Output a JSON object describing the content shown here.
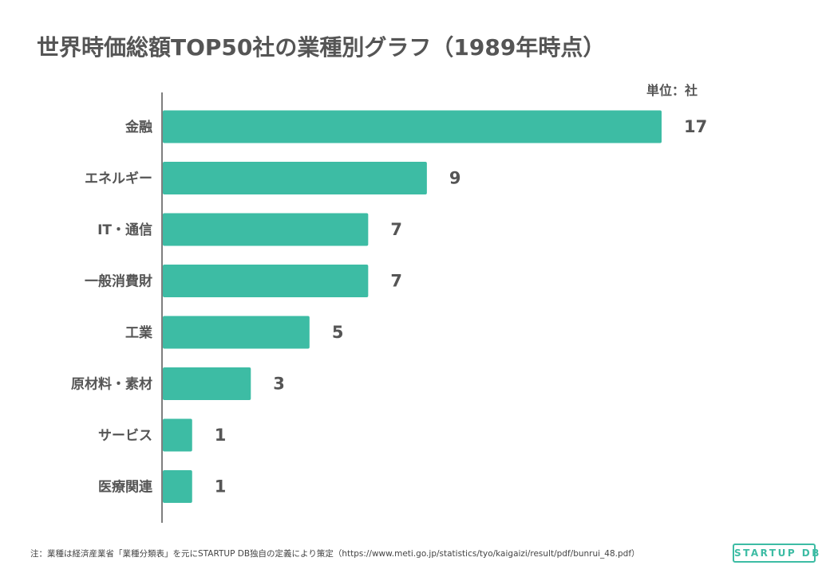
{
  "title": "世界時価総額TOP50社の業種別グラフ（1989年時点）",
  "unit_label": "単位：社",
  "colors": {
    "bar": "#3dbca4",
    "axis": "#555555",
    "text": "#555555"
  },
  "chart_data": {
    "type": "bar",
    "orientation": "horizontal",
    "title": "世界時価総額TOP50社の業種別グラフ（1989年時点）",
    "categories": [
      "金融",
      "エネルギー",
      "IT・通信",
      "一般消費財",
      "工業",
      "原材料・素材",
      "サービス",
      "医療関連"
    ],
    "values": [
      17,
      9,
      7,
      7,
      5,
      3,
      1,
      1
    ],
    "xlabel": "",
    "ylabel": "",
    "xlim": [
      0,
      17
    ],
    "grid": false,
    "legend": "none"
  },
  "footnote": "注：業種は経済産業省「業種分類表」を元にSTARTUP DB独自の定義により策定（https://www.meti.go.jp/statistics/tyo/kaigaizi/result/pdf/bunrui_48.pdf）",
  "logo_text": "STARTUP DB"
}
